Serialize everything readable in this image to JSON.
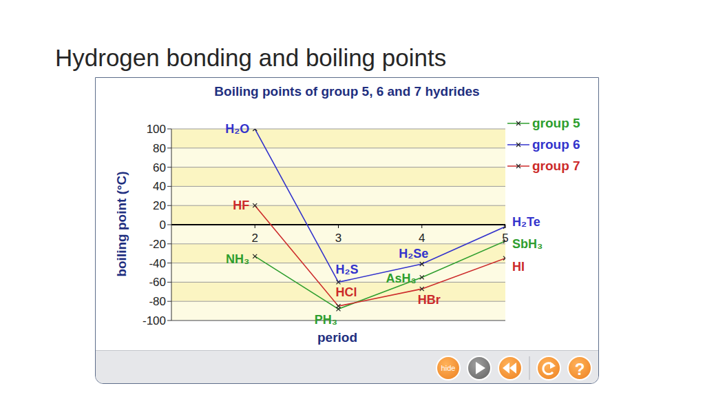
{
  "title": "Hydrogen bonding and boiling points",
  "controls": [
    "hide",
    "?"
  ],
  "chart_data": {
    "type": "line",
    "title": "Boiling points of group 5, 6 and 7 hydrides",
    "x_label": "period",
    "y_label": "boiling point (°C)",
    "x": [
      2,
      3,
      4,
      5
    ],
    "xlim": [
      1,
      5
    ],
    "xticks": [
      2,
      3,
      4,
      5
    ],
    "ylim": [
      -100,
      100
    ],
    "yticks": [
      -100,
      -80,
      -60,
      -40,
      -20,
      0,
      20,
      40,
      60,
      80,
      100
    ],
    "grid": true,
    "legend": "upper right",
    "marker": "x",
    "series": [
      {
        "name": "group 5",
        "color": "#2e9e2e",
        "values": [
          -33,
          -88,
          -55,
          -17
        ],
        "labels": [
          "NH₃",
          "PH₃",
          "AsH₃",
          "SbH₃"
        ]
      },
      {
        "name": "group 6",
        "color": "#3333cc",
        "values": [
          100,
          -60,
          -41,
          -2
        ],
        "labels": [
          "H₂O",
          "H₂S",
          "H₂Se",
          "H₂Te"
        ]
      },
      {
        "name": "group 7",
        "color": "#cc2a2a",
        "values": [
          20,
          -85,
          -67,
          -35
        ],
        "labels": [
          "HF",
          "HCl",
          "HBr",
          "HI"
        ]
      }
    ]
  }
}
